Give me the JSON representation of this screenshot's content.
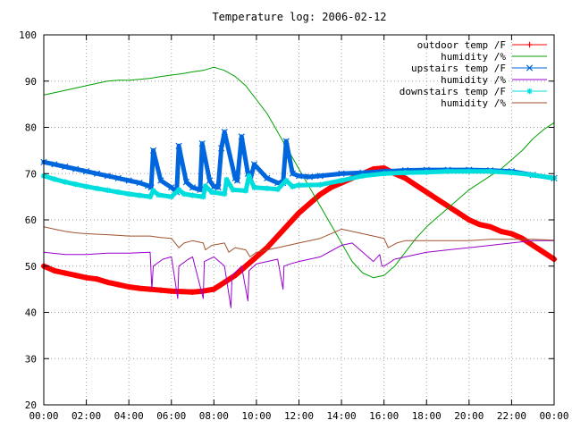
{
  "chart_data": {
    "type": "line",
    "title": "Temperature log: 2006-02-12",
    "xlabel": "",
    "ylabel": "",
    "x_unit": "hours",
    "xlim": [
      0,
      24
    ],
    "ylim": [
      20,
      100
    ],
    "grid": true,
    "legend_position": "top-right",
    "x_ticks": [
      {
        "value": 0,
        "label": "00:00"
      },
      {
        "value": 2,
        "label": "02:00"
      },
      {
        "value": 4,
        "label": "04:00"
      },
      {
        "value": 6,
        "label": "06:00"
      },
      {
        "value": 8,
        "label": "08:00"
      },
      {
        "value": 10,
        "label": "10:00"
      },
      {
        "value": 12,
        "label": "12:00"
      },
      {
        "value": 14,
        "label": "14:00"
      },
      {
        "value": 16,
        "label": "16:00"
      },
      {
        "value": 18,
        "label": "18:00"
      },
      {
        "value": 20,
        "label": "20:00"
      },
      {
        "value": 22,
        "label": "22:00"
      },
      {
        "value": 24,
        "label": "00:00"
      }
    ],
    "y_ticks": [
      20,
      30,
      40,
      50,
      60,
      70,
      80,
      90,
      100
    ],
    "series": [
      {
        "name": "outdoor temp /F",
        "color": "#ff0000",
        "marker": "plus",
        "x": [
          0,
          0.5,
          1,
          1.5,
          2,
          2.5,
          3,
          3.5,
          4,
          4.5,
          5,
          5.5,
          6,
          6.5,
          7,
          7.5,
          8,
          8.5,
          9,
          9.5,
          10,
          10.5,
          11,
          11.5,
          12,
          12.5,
          13,
          13.5,
          14,
          14.5,
          15,
          15.5,
          16,
          16.5,
          17,
          17.5,
          18,
          18.5,
          19,
          19.5,
          20,
          20.5,
          21,
          21.5,
          22,
          22.5,
          23,
          23.5,
          24
        ],
        "values": [
          50,
          49,
          48.5,
          48,
          47.5,
          47.2,
          46.5,
          46,
          45.5,
          45.2,
          45,
          44.8,
          44.6,
          44.5,
          44.4,
          44.6,
          45,
          46.5,
          48,
          50,
          52,
          54,
          56.5,
          59,
          61.5,
          63.5,
          65.5,
          67,
          68,
          69,
          70,
          71,
          71.2,
          70,
          69,
          67.5,
          66,
          64.5,
          63,
          61.5,
          60,
          59,
          58.5,
          57.5,
          57,
          56,
          54.5,
          53,
          51.5
        ]
      },
      {
        "name": "humidity /%",
        "color": "#00a000",
        "marker": "none",
        "x": [
          0,
          0.5,
          1,
          1.5,
          2,
          2.5,
          3,
          3.5,
          4,
          4.5,
          5,
          5.5,
          6,
          6.5,
          7,
          7.5,
          8,
          8.5,
          9,
          9.5,
          10,
          10.5,
          11,
          11.5,
          12,
          12.5,
          13,
          13.5,
          14,
          14.5,
          15,
          15.5,
          16,
          16.5,
          17,
          17.5,
          18,
          18.5,
          19,
          19.5,
          20,
          20.5,
          21,
          21.5,
          22,
          22.5,
          23,
          23.5,
          24
        ],
        "values": [
          87,
          87.5,
          88,
          88.5,
          89,
          89.5,
          90,
          90.2,
          90.2,
          90.4,
          90.6,
          91,
          91.3,
          91.6,
          92,
          92.3,
          93,
          92.3,
          91,
          89,
          86,
          83,
          79,
          75,
          71,
          67,
          63,
          59,
          55,
          51,
          48.5,
          47.5,
          48,
          50,
          53,
          56,
          58.5,
          60.5,
          62.5,
          64.5,
          66.5,
          68,
          69.5,
          71,
          73,
          75,
          77.5,
          79.5,
          81
        ]
      },
      {
        "name": "upstairs temp /F",
        "color": "#0066dd",
        "marker": "cross",
        "x": [
          0,
          0.5,
          1,
          1.5,
          2,
          2.5,
          3,
          3.5,
          4,
          4.5,
          4.9,
          5.05,
          5.15,
          5.5,
          6,
          6.25,
          6.35,
          6.7,
          7,
          7.35,
          7.45,
          7.8,
          8,
          8.2,
          8.35,
          8.5,
          9,
          9.1,
          9.3,
          9.6,
          9.7,
          9.9,
          10.5,
          11,
          11.25,
          11.4,
          11.7,
          12,
          12.5,
          13,
          14,
          15,
          16,
          17,
          18,
          19,
          20,
          21,
          22,
          23,
          24
        ],
        "values": [
          72.5,
          72,
          71.5,
          71,
          70.5,
          70,
          69.5,
          69,
          68.5,
          68,
          67.4,
          67,
          75,
          68.5,
          67,
          66,
          76,
          68.2,
          67,
          66.5,
          76.5,
          68.5,
          67.2,
          67,
          75.5,
          79,
          69,
          68.5,
          78,
          70,
          68.5,
          72,
          69,
          68,
          68,
          77,
          70,
          69.5,
          69.3,
          69.5,
          70,
          70.2,
          70.5,
          70.7,
          70.8,
          70.8,
          70.8,
          70.7,
          70.5,
          69.7,
          69
        ]
      },
      {
        "name": "humidity /%",
        "color": "#9900cc",
        "marker": "none",
        "x": [
          0,
          1,
          2,
          3,
          4,
          5,
          5.08,
          5.15,
          5.6,
          6,
          6.3,
          6.35,
          6.8,
          7,
          7.5,
          7.55,
          8,
          8.5,
          8.8,
          8.85,
          9.3,
          9.6,
          9.65,
          10,
          10.5,
          11,
          11.25,
          11.3,
          11.6,
          12,
          13,
          14,
          14.5,
          15,
          15.5,
          15.8,
          15.9,
          16,
          16.5,
          17,
          18,
          19,
          20,
          21,
          22,
          23,
          24
        ],
        "values": [
          53,
          52.5,
          52.5,
          52.8,
          52.8,
          53,
          45,
          50,
          51.5,
          52,
          43,
          50,
          51.5,
          52,
          43,
          51,
          52,
          50,
          41,
          48,
          50,
          42.5,
          49,
          50.5,
          51,
          51.5,
          45,
          50,
          50.5,
          51,
          52,
          54.5,
          55,
          53,
          51,
          52.5,
          50,
          50,
          51.5,
          52,
          53,
          53.5,
          54,
          54.5,
          55,
          55.5,
          55.5
        ]
      },
      {
        "name": "downstairs temp /F",
        "color": "#00dddd",
        "marker": "star",
        "x": [
          0,
          0.5,
          1,
          1.5,
          2,
          2.5,
          3,
          3.5,
          4,
          4.5,
          5,
          5.15,
          5.4,
          6,
          6.35,
          6.6,
          7,
          7.5,
          7.6,
          7.9,
          8.5,
          8.6,
          8.9,
          9.5,
          9.65,
          9.9,
          10.5,
          11,
          11.4,
          11.7,
          12,
          13,
          14,
          15,
          16,
          17,
          18,
          19,
          20,
          21,
          22,
          23,
          24
        ],
        "values": [
          69.5,
          68.8,
          68.2,
          67.7,
          67.2,
          66.8,
          66.4,
          66,
          65.6,
          65.3,
          65,
          66.3,
          65.4,
          65,
          66.5,
          65.6,
          65.3,
          65,
          67.3,
          66,
          65.6,
          68.7,
          66.5,
          66.3,
          69.5,
          67,
          66.8,
          66.6,
          68.5,
          67.2,
          67.5,
          67.6,
          68.5,
          69.5,
          70,
          70.2,
          70.3,
          70.5,
          70.5,
          70.5,
          70.2,
          69.7,
          69
        ]
      },
      {
        "name": "humidity /%",
        "color": "#a0522d",
        "marker": "none",
        "x": [
          0,
          0.5,
          1,
          1.5,
          2,
          3,
          4,
          5,
          5.5,
          6,
          6.35,
          6.6,
          7,
          7.5,
          7.6,
          7.9,
          8.5,
          8.7,
          9,
          9.5,
          9.7,
          10,
          10.5,
          11,
          11.5,
          12,
          13,
          14,
          14.5,
          15,
          15.5,
          16,
          16.2,
          16.6,
          17,
          18,
          19,
          20,
          21,
          22,
          23,
          24
        ],
        "values": [
          58.5,
          58,
          57.5,
          57.2,
          57,
          56.8,
          56.5,
          56.5,
          56.2,
          56,
          54,
          55,
          55.5,
          55,
          53.5,
          54.5,
          55,
          53,
          54,
          53.5,
          52,
          53,
          53.5,
          54,
          54.5,
          55,
          56,
          58,
          57.5,
          57,
          56.5,
          56,
          54,
          55,
          55.5,
          55.5,
          55.5,
          55.5,
          55.8,
          55.8,
          55.8,
          55.6
        ]
      }
    ]
  }
}
